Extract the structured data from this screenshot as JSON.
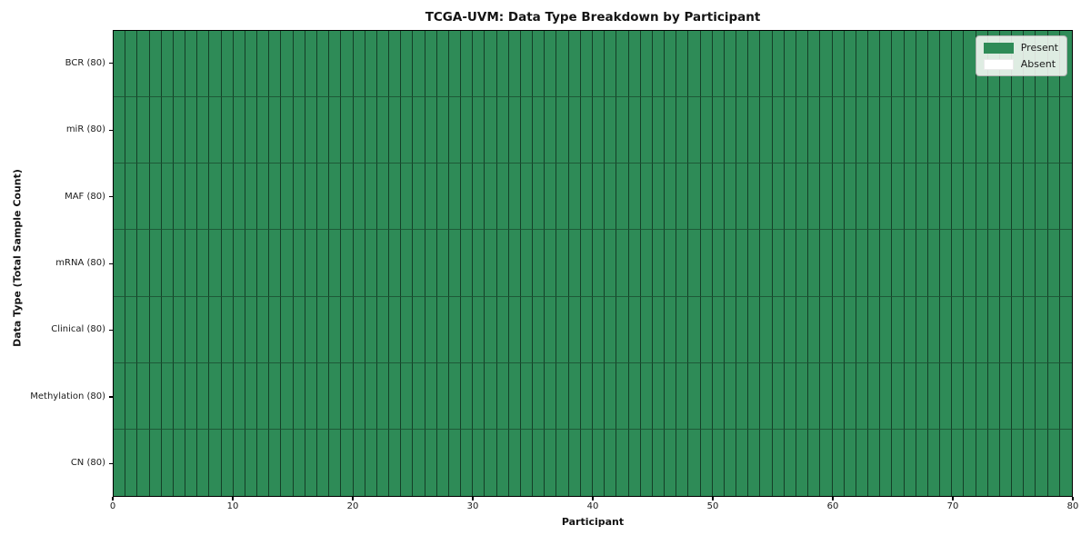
{
  "chart_data": {
    "type": "heatmap",
    "title": "TCGA-UVM: Data Type Breakdown by Participant",
    "xlabel": "Participant",
    "ylabel": "Data Type (Total Sample Count)",
    "xlim": [
      0,
      80
    ],
    "x_ticks": [
      "0",
      "10",
      "20",
      "30",
      "40",
      "50",
      "60",
      "70",
      "80"
    ],
    "n_participants": 80,
    "rows": [
      {
        "label": "BCR (80)",
        "data_type": "BCR",
        "total_samples": 80,
        "present": 80,
        "absent": 0
      },
      {
        "label": "miR (80)",
        "data_type": "miR",
        "total_samples": 80,
        "present": 80,
        "absent": 0
      },
      {
        "label": "MAF (80)",
        "data_type": "MAF",
        "total_samples": 80,
        "present": 80,
        "absent": 0
      },
      {
        "label": "mRNA (80)",
        "data_type": "mRNA",
        "total_samples": 80,
        "present": 80,
        "absent": 0
      },
      {
        "label": "Clinical (80)",
        "data_type": "Clinical",
        "total_samples": 80,
        "present": 80,
        "absent": 0
      },
      {
        "label": "Methylation (80)",
        "data_type": "Methylation",
        "total_samples": 80,
        "present": 80,
        "absent": 0
      },
      {
        "label": "CN (80)",
        "data_type": "CN",
        "total_samples": 80,
        "present": 80,
        "absent": 0
      }
    ],
    "legend": {
      "position": "upper right",
      "items": [
        {
          "label": "Present",
          "color": "#2e8b57"
        },
        {
          "label": "Absent",
          "color": "#ffffff"
        }
      ]
    },
    "colors": {
      "present": "#2e8b57",
      "absent": "#ffffff",
      "axis": "#000000"
    },
    "grid_lines": "cell borders"
  }
}
